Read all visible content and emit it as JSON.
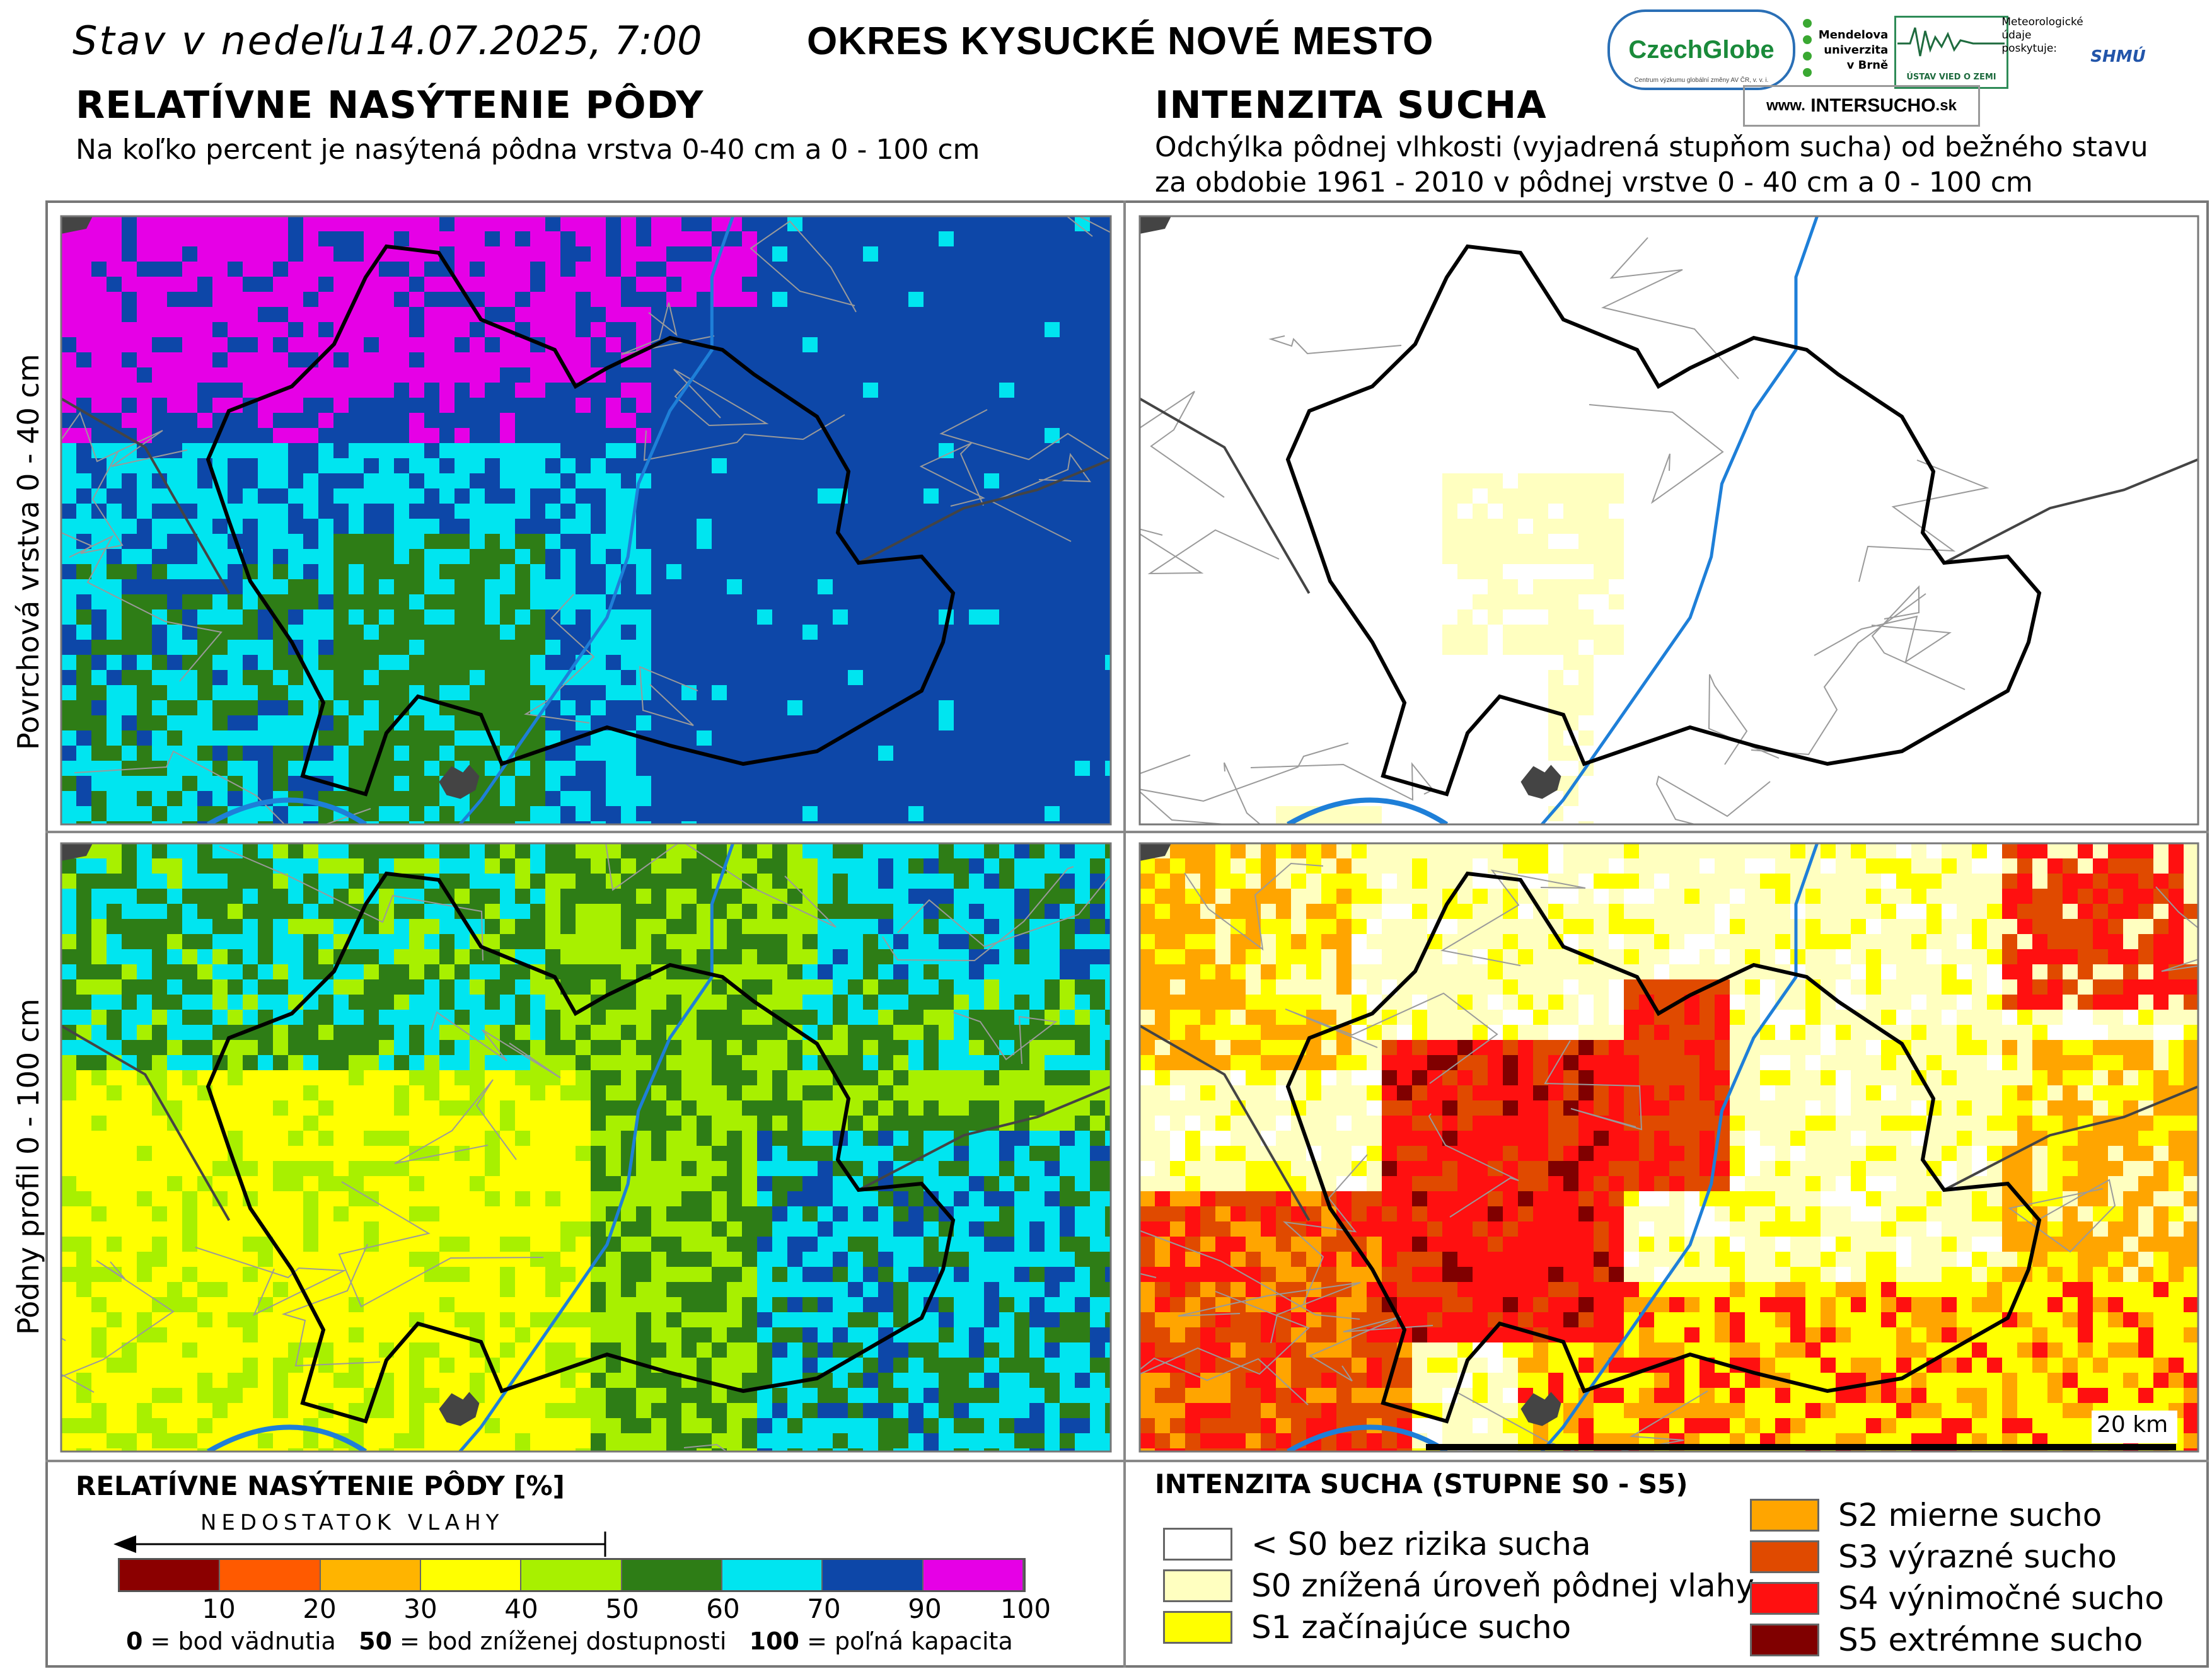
{
  "header": {
    "date_prefix": "Stav v nedeľu",
    "date_value": "14.07.2025, 7:00",
    "district": "OKRES  KYSUCKÉ NOVÉ MESTO"
  },
  "left_section": {
    "title": "RELATÍVNE NASÝTENIE PÔDY",
    "subtitle": "Na koľko percent je nasýtená pôdna vrstva 0-40 cm a 0 - 100 cm"
  },
  "right_section": {
    "title": "INTENZITA SUCHA",
    "subtitle_line1": "Odchýlka pôdnej vlhkosti (vyjadrená stupňom sucha) od bežného stavu",
    "subtitle_line2": "za obdobie 1961 - 2010 v pôdnej vrstve 0 - 40 cm a 0 - 100 cm"
  },
  "logos": {
    "czechglobe": "CzechGlobe",
    "czechglobe_sub": "Centrum výzkumu globální změny AV ČR, v. v. i.",
    "mendel": [
      "Mendelova",
      "univerzita",
      "v Brně"
    ],
    "ustav": "ÚSTAV VIED O ZEMI",
    "meteo": [
      "Meteorologické",
      "údaje",
      "poskytuje:"
    ],
    "shmu": "SHMÚ",
    "intersucho_prefix": "www.",
    "intersucho_name": "INTERSUCHO",
    "intersucho_suffix": ".sk"
  },
  "row_labels": {
    "top": "Povrchová vrstva 0 - 40 cm",
    "bottom": "Pôdny profil 0 - 100 cm"
  },
  "scale_bar": {
    "label": "20 km"
  },
  "saturation_legend": {
    "title": "RELATÍVNE NASÝTENIE PÔDY [%]",
    "arrow_label": "NEDOSTATOK VLAHY",
    "classes": [
      {
        "color": "#8b0000"
      },
      {
        "color": "#ff5a00"
      },
      {
        "color": "#ffb400"
      },
      {
        "color": "#ffff00"
      },
      {
        "color": "#a8f000"
      },
      {
        "color": "#2e7d16"
      },
      {
        "color": "#00e5f0"
      },
      {
        "color": "#0d47a8"
      },
      {
        "color": "#e600e6"
      }
    ],
    "ticks": [
      "10",
      "20",
      "30",
      "40",
      "50",
      "60",
      "70",
      "90",
      "100"
    ],
    "note_0_value": "0",
    "note_0_text": " = bod vädnutia",
    "note_50_value": "50",
    "note_50_text": " = bod zníženej dostupnosti",
    "note_100_value": "100",
    "note_100_text": " = poľná kapacita"
  },
  "drought_legend": {
    "title": "INTENZITA SUCHA (STUPNE S0 - S5)",
    "items": [
      {
        "label": "< S0 bez rizika sucha",
        "color": "#ffffff"
      },
      {
        "label": "S0 znížená úroveň pôdnej vlahy",
        "color": "#ffffc0"
      },
      {
        "label": "S1 začínajúce sucho",
        "color": "#ffff00"
      },
      {
        "label": "S2 mierne sucho",
        "color": "#ffa500"
      },
      {
        "label": "S3 výrazné sucho",
        "color": "#e04a00"
      },
      {
        "label": "S4 výnimočné sucho",
        "color": "#ff1010"
      },
      {
        "label": "S5 extrémne sucho",
        "color": "#800000"
      }
    ]
  }
}
